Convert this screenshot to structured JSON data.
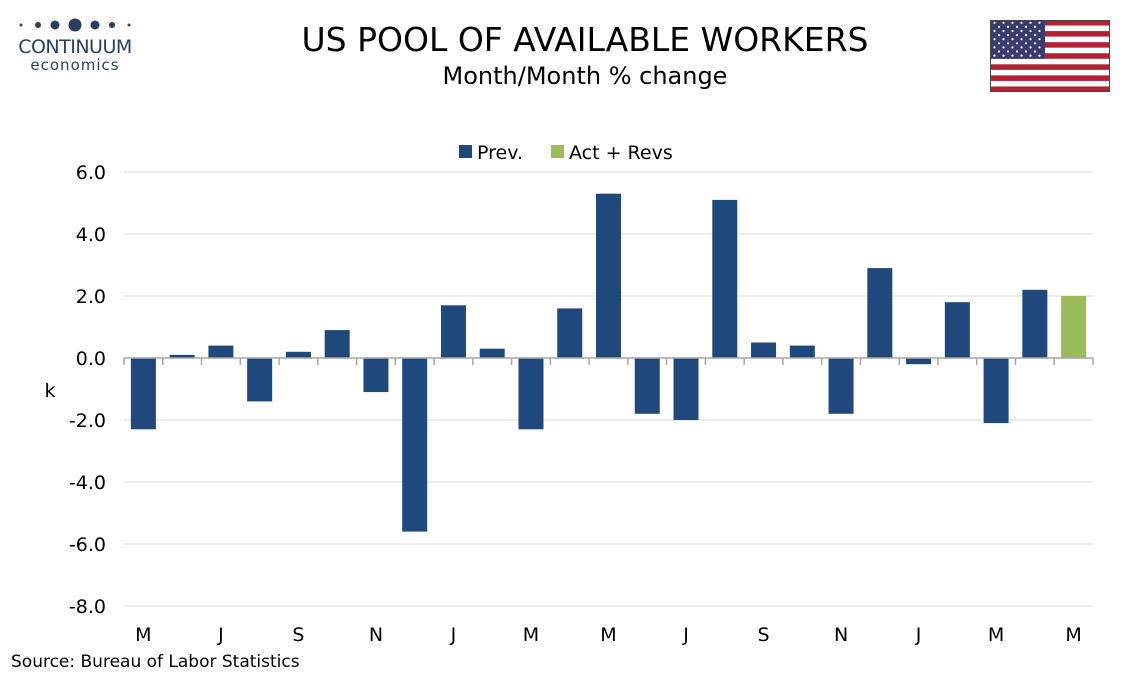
{
  "header": {
    "title": "US POOL OF AVAILABLE WORKERS",
    "subtitle": "Month/Month % change",
    "logo_name": "CONTINUUM",
    "logo_sub": "economics",
    "flag_icon": "us-flag-icon"
  },
  "source": "Source: Bureau of Labor Statistics",
  "colors": {
    "prev": "#1f497d",
    "act": "#9bbb59",
    "grid": "#d9d9d9",
    "axis": "#a6a6a6",
    "logo": "#2a3f5f"
  },
  "chart_data": {
    "type": "bar",
    "ylabel": "k",
    "ylim": [
      -8,
      6
    ],
    "yticks": [
      -8.0,
      -6.0,
      -4.0,
      -2.0,
      0.0,
      2.0,
      4.0,
      6.0
    ],
    "grid": true,
    "legend_position": "top-center",
    "legend": [
      "Prev.",
      "Act + Revs"
    ],
    "x_tick_labels": [
      "M",
      "J",
      "S",
      "N",
      "J",
      "M",
      "M",
      "J",
      "S",
      "N",
      "J",
      "M",
      "M"
    ],
    "series": [
      {
        "name": "Prev.",
        "values": [
          -2.3,
          0.1,
          0.4,
          -1.4,
          0.2,
          0.9,
          -1.1,
          -5.6,
          1.7,
          0.3,
          -2.3,
          1.6,
          5.3,
          -1.8,
          -2.0,
          5.1,
          0.5,
          0.4,
          -1.8,
          2.9,
          -0.2,
          1.8,
          -2.1,
          2.2,
          null
        ]
      },
      {
        "name": "Act + Revs",
        "values": [
          null,
          null,
          null,
          null,
          null,
          null,
          null,
          null,
          null,
          null,
          null,
          null,
          null,
          null,
          null,
          null,
          null,
          null,
          null,
          null,
          null,
          null,
          null,
          null,
          2.0
        ]
      }
    ]
  }
}
